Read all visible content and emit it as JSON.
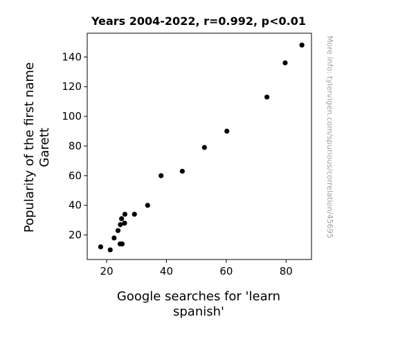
{
  "chart_data": {
    "type": "scatter",
    "title": "Years 2004-2022, r=0.992, p<0.01",
    "xlabel_lines": [
      "Google searches for 'learn",
      "spanish'"
    ],
    "ylabel_lines": [
      "Popularity of the first name",
      "Garett"
    ],
    "xlim": [
      13.5,
      88.5
    ],
    "ylim": [
      3.5,
      156
    ],
    "xticks": [
      20,
      40,
      60,
      80
    ],
    "yticks": [
      20,
      40,
      60,
      80,
      100,
      120,
      140
    ],
    "point_color": "#000000",
    "points": [
      {
        "x": 18.0,
        "y": 12
      },
      {
        "x": 21.2,
        "y": 10
      },
      {
        "x": 22.5,
        "y": 18
      },
      {
        "x": 23.8,
        "y": 23
      },
      {
        "x": 24.6,
        "y": 27
      },
      {
        "x": 25.0,
        "y": 31
      },
      {
        "x": 24.5,
        "y": 14
      },
      {
        "x": 25.2,
        "y": 14
      },
      {
        "x": 26.0,
        "y": 28
      },
      {
        "x": 26.1,
        "y": 34
      },
      {
        "x": 29.3,
        "y": 34
      },
      {
        "x": 33.7,
        "y": 40
      },
      {
        "x": 38.2,
        "y": 60
      },
      {
        "x": 45.3,
        "y": 63
      },
      {
        "x": 52.7,
        "y": 79
      },
      {
        "x": 60.2,
        "y": 90
      },
      {
        "x": 73.6,
        "y": 113
      },
      {
        "x": 79.7,
        "y": 136
      },
      {
        "x": 85.3,
        "y": 148
      }
    ]
  },
  "watermark": "More info: tylervigen.com/spurious/correlation/45695"
}
